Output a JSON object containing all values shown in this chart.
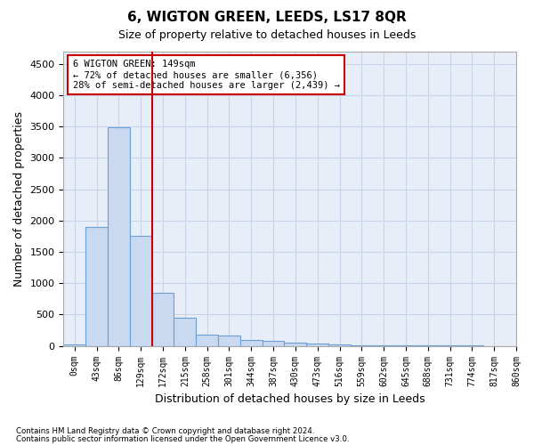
{
  "title": "6, WIGTON GREEN, LEEDS, LS17 8QR",
  "subtitle": "Size of property relative to detached houses in Leeds",
  "xlabel": "Distribution of detached houses by size in Leeds",
  "ylabel": "Number of detached properties",
  "bar_color": "#c9d9f0",
  "bar_edge_color": "#6a9fd8",
  "grid_color": "#c8d4e8",
  "bg_color": "#e8eef8",
  "vline_color": "#cc0000",
  "vline_x": 3.5,
  "annotation_text": "6 WIGTON GREEN: 149sqm\n← 72% of detached houses are smaller (6,356)\n28% of semi-detached houses are larger (2,439) →",
  "annotation_box_color": "#ffffff",
  "annotation_box_edge": "#cc0000",
  "footer_line1": "Contains HM Land Registry data © Crown copyright and database right 2024.",
  "footer_line2": "Contains public sector information licensed under the Open Government Licence v3.0.",
  "bins": [
    "0sqm",
    "43sqm",
    "86sqm",
    "129sqm",
    "172sqm",
    "215sqm",
    "258sqm",
    "301sqm",
    "344sqm",
    "387sqm",
    "430sqm",
    "473sqm",
    "516sqm",
    "559sqm",
    "602sqm",
    "645sqm",
    "688sqm",
    "731sqm",
    "774sqm",
    "817sqm",
    "860sqm"
  ],
  "values": [
    30,
    1900,
    3490,
    1760,
    850,
    450,
    175,
    165,
    90,
    80,
    55,
    40,
    25,
    15,
    10,
    8,
    5,
    5,
    3,
    2
  ],
  "ylim": [
    0,
    4700
  ],
  "yticks": [
    0,
    500,
    1000,
    1500,
    2000,
    2500,
    3000,
    3500,
    4000,
    4500
  ],
  "figsize": [
    6.0,
    5.0
  ],
  "dpi": 100
}
